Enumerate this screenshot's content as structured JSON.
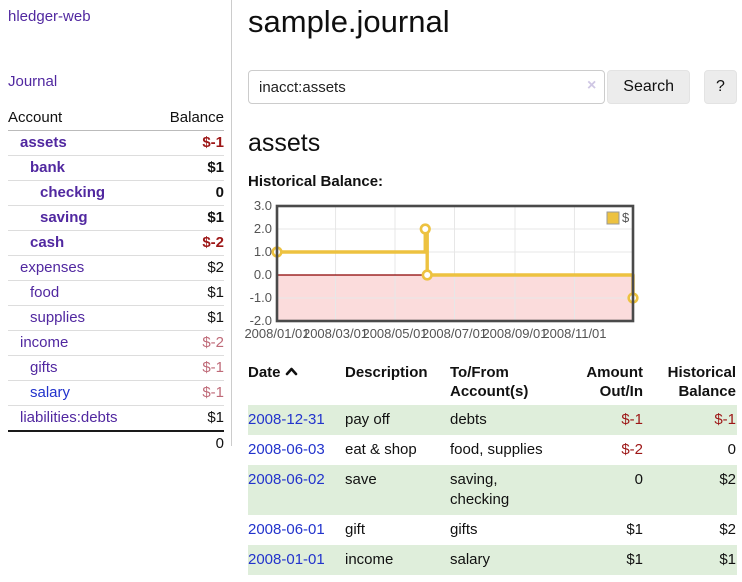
{
  "colors": {
    "accent_purple": "#5128a0",
    "link_blue": "#2233cc",
    "negative_strong": "#9d1616",
    "negative_soft": "#bf6a78",
    "row_stripe_green": "#dfeedb",
    "chart_line_gold": "#edc240",
    "chart_negative_region": "#fbdcdc",
    "chart_zero_line": "#8b0000"
  },
  "sidebar": {
    "title": "hledger-web",
    "journal_link": "Journal",
    "accounts_table": {
      "headers": {
        "account": "Account",
        "balance": "Balance"
      },
      "rows": [
        {
          "name": "assets",
          "balance": "$-1"
        },
        {
          "name": "bank",
          "balance": "$1"
        },
        {
          "name": "checking",
          "balance": "0"
        },
        {
          "name": "saving",
          "balance": "$1"
        },
        {
          "name": "cash",
          "balance": "$-2"
        },
        {
          "name": "expenses",
          "balance": "$2"
        },
        {
          "name": "food",
          "balance": "$1"
        },
        {
          "name": "supplies",
          "balance": "$1"
        },
        {
          "name": "income",
          "balance": "$-2"
        },
        {
          "name": "gifts",
          "balance": "$-1"
        },
        {
          "name": "salary",
          "balance": "$-1"
        },
        {
          "name": "liabilities:debts",
          "balance": "$1"
        }
      ],
      "total": "0"
    }
  },
  "main": {
    "title": "sample.journal",
    "search": {
      "value": "inacct:assets",
      "clear_icon": "×",
      "button": "Search",
      "help_button": "?"
    },
    "account_heading": "assets",
    "chart_label": "Historical Balance:",
    "register": {
      "headers": {
        "date": "Date",
        "description": "Description",
        "account_line1": "To/From",
        "account_line2": "Account(s)",
        "amount_line1": "Amount",
        "amount_line2": "Out/In",
        "balance_line1": "Historical",
        "balance_line2": "Balance"
      },
      "rows": [
        {
          "date": "2008-12-31",
          "description": "pay off",
          "accounts": "debts",
          "amount": "$-1",
          "balance": "$-1"
        },
        {
          "date": "2008-06-03",
          "description": "eat & shop",
          "accounts": "food, supplies",
          "amount": "$-2",
          "balance": "0"
        },
        {
          "date": "2008-06-02",
          "description": "save",
          "accounts": "saving, checking",
          "amount": "0",
          "balance": "$2"
        },
        {
          "date": "2008-06-01",
          "description": "gift",
          "accounts": "gifts",
          "amount": "$1",
          "balance": "$2"
        },
        {
          "date": "2008-01-01",
          "description": "income",
          "accounts": "salary",
          "amount": "$1",
          "balance": "$1"
        }
      ]
    }
  },
  "chart_data": {
    "type": "line",
    "title": "Historical Balance:",
    "legend": "$",
    "x_range": [
      "2008-01-01",
      "2008-12-31"
    ],
    "ylim": [
      -2.0,
      3.0
    ],
    "y_ticks": [
      3.0,
      2.0,
      1.0,
      0.0,
      -1.0,
      -2.0
    ],
    "x_ticks": [
      "2008/01/01",
      "2008/03/01",
      "2008/05/01",
      "2008/07/01",
      "2008/09/01",
      "2008/11/01"
    ],
    "points": [
      {
        "date": "2008-01-01",
        "value": 1
      },
      {
        "date": "2008-06-01",
        "value": 2
      },
      {
        "date": "2008-06-03",
        "value": 0
      },
      {
        "date": "2008-12-31",
        "value": -1
      }
    ]
  }
}
